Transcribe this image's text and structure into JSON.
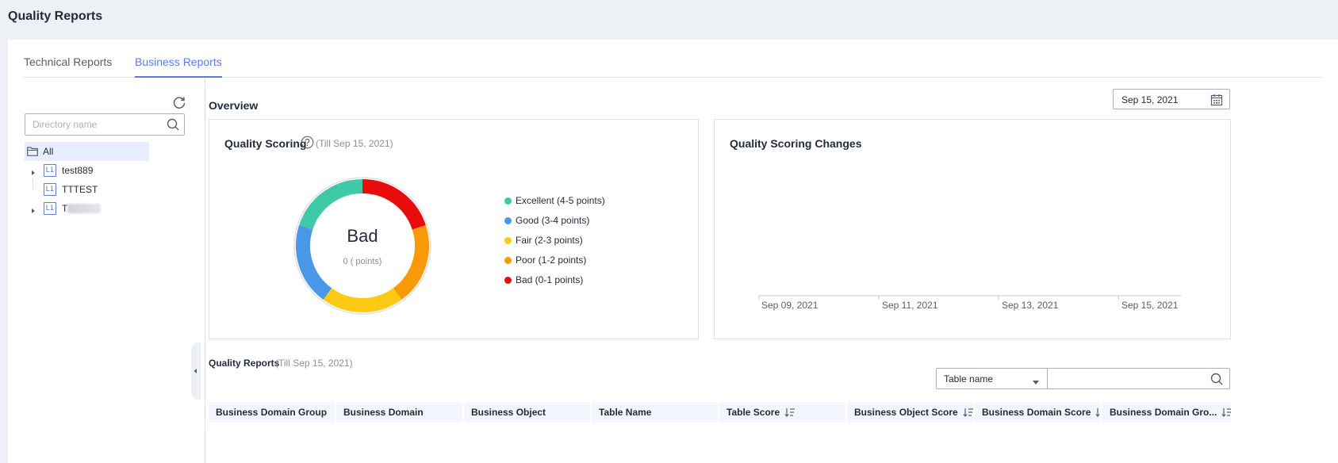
{
  "page": {
    "title": "Quality Reports"
  },
  "tabs": [
    {
      "label": "Technical Reports",
      "active": false
    },
    {
      "label": "Business Reports",
      "active": true
    }
  ],
  "sidebar": {
    "search_placeholder": "Directory name",
    "tree": [
      {
        "label": "All",
        "icon": "folder-icon",
        "selected": true
      },
      {
        "label": "test889",
        "badge": "L1",
        "expandable": true
      },
      {
        "label": "TTTEST",
        "badge": "L1",
        "expandable": false
      },
      {
        "label": "T",
        "badge": "L1",
        "expandable": true,
        "redacted": true
      }
    ]
  },
  "overview": {
    "title": "Overview",
    "date": "Sep 15, 2021"
  },
  "quality_scoring": {
    "title": "Quality Scoring",
    "subtitle": "(Till Sep 15, 2021)",
    "rating": "Bad",
    "points": "0 ( points)",
    "legend": [
      {
        "label": "Excellent (4-5 points)",
        "color": "#3fc9a6"
      },
      {
        "label": "Good (3-4 points)",
        "color": "#4a96e8"
      },
      {
        "label": "Fair (2-3 points)",
        "color": "#fcca14"
      },
      {
        "label": "Poor (1-2 points)",
        "color": "#f99a0a"
      },
      {
        "label": "Bad (0-1 points)",
        "color": "#e90c0c"
      }
    ],
    "ring_segments": [
      {
        "name": "Bad",
        "color": "#e90c0c",
        "fraction": 0.2
      },
      {
        "name": "Poor",
        "color": "#f99a0a",
        "fraction": 0.2
      },
      {
        "name": "Fair",
        "color": "#fcca14",
        "fraction": 0.2
      },
      {
        "name": "Good",
        "color": "#4a96e8",
        "fraction": 0.2
      },
      {
        "name": "Excellent",
        "color": "#3fc9a6",
        "fraction": 0.2
      }
    ]
  },
  "scoring_changes": {
    "title": "Quality Scoring Changes",
    "x_ticks": [
      "Sep 09, 2021",
      "Sep 11, 2021",
      "Sep 13, 2021",
      "Sep 15, 2021"
    ]
  },
  "quality_reports": {
    "title": "Quality Reports",
    "subtitle": "(Till Sep 15, 2021)",
    "filter_field": "Table name",
    "filter_value": "",
    "columns": [
      {
        "label": "Business Domain Group",
        "sortable": false
      },
      {
        "label": "Business Domain",
        "sortable": false
      },
      {
        "label": "Business Object",
        "sortable": false
      },
      {
        "label": "Table Name",
        "sortable": false
      },
      {
        "label": "Table Score",
        "sortable": true
      },
      {
        "label": "Business Object Score",
        "sortable": true
      },
      {
        "label": "Business Domain Score",
        "sortable": true
      },
      {
        "label": "Business Domain Gro...",
        "sortable": true
      }
    ]
  }
}
